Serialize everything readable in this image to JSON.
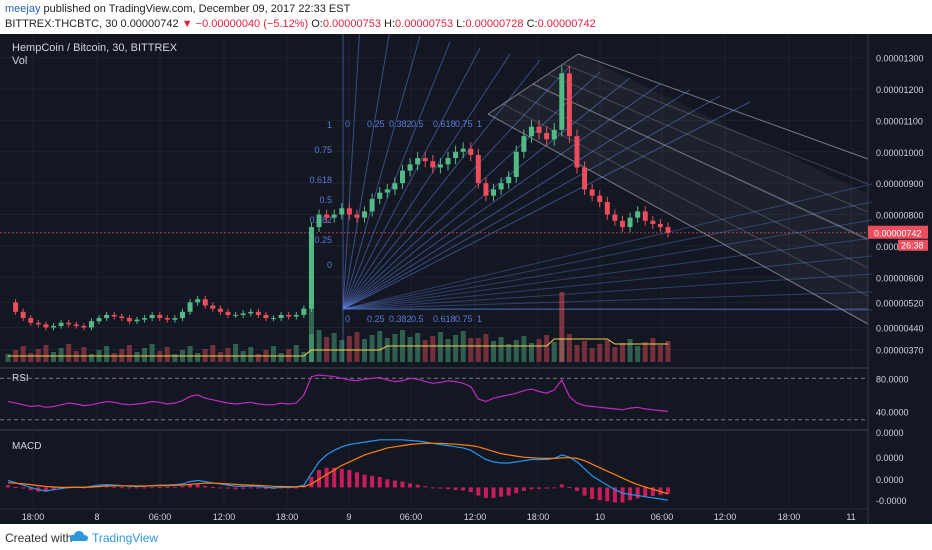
{
  "header": {
    "user": "meejay",
    "published": " published on TradingView.com, December 09, 2017 22:33 EST",
    "symbol_line": "BITTREX:THCBTC, 30  0.00000742",
    "change": " ▼ −0.00000040 (−5.12%)",
    "o_label": " O:",
    "o_value": "0.00000753",
    "h_label": " H:",
    "h_value": "0.00000753",
    "l_label": " L:",
    "l_value": "0.00000728",
    "c_label": " C:",
    "c_value": "0.00000742"
  },
  "pane": {
    "title": "HempCoin / Bitcoin, 30, BITTREX",
    "vol": "Vol",
    "rsi_label": "RSI",
    "macd_label": "MACD"
  },
  "footer": {
    "created_with": "Created with",
    "brand": "TradingView"
  },
  "colors": {
    "bg": "#131722",
    "up": "#53b987",
    "down": "#eb4d5c",
    "rsi": "#c228c2",
    "macd": "#2196f3",
    "signal": "#ff7f0e",
    "hist": "#e91e63",
    "vol_ma": "#f0d24a",
    "fib": "#5b7bd8",
    "pitch": "#a0a4b0"
  },
  "chart_data": [
    {
      "type": "candlestick",
      "title": "HempCoin / Bitcoin, 30, BITTREX",
      "price_axis_ticks": [
        "0.00001300",
        "0.00001200",
        "0.00001100",
        "0.00001000",
        "0.00000900",
        "0.00000800",
        "0.00000700",
        "0.00000600",
        "0.00000520",
        "0.00000440",
        "0.00000370"
      ],
      "last_price_label": "0.00000742",
      "countdown_label": "26:38",
      "time_axis_ticks": [
        "18:00",
        "8",
        "06:00",
        "12:00",
        "18:00",
        "9",
        "06:00",
        "12:00",
        "18:00",
        "10",
        "06:00",
        "12:00",
        "18:00",
        "11"
      ],
      "fib_levels": [
        "0",
        "0.25",
        "0.382",
        "0.5",
        "0.618",
        "0.75",
        "1"
      ],
      "close_series": [
        5.2e-06,
        4.9e-06,
        4.7e-06,
        4.55e-06,
        4.5e-06,
        4.4e-06,
        4.45e-06,
        4.55e-06,
        4.5e-06,
        4.45e-06,
        4.4e-06,
        4.6e-06,
        4.7e-06,
        4.8e-06,
        4.75e-06,
        4.7e-06,
        4.6e-06,
        4.65e-06,
        4.7e-06,
        4.8e-06,
        4.7e-06,
        4.65e-06,
        4.7e-06,
        4.9e-06,
        5.2e-06,
        5.3e-06,
        5.1e-06,
        5e-06,
        4.9e-06,
        4.8e-06,
        4.8e-06,
        4.85e-06,
        4.9e-06,
        4.8e-06,
        4.7e-06,
        4.7e-06,
        4.8e-06,
        4.75e-06,
        4.8e-06,
        5e-06,
        7.6e-06,
        8e-06,
        7.9e-06,
        8e-06,
        8.2e-06,
        8e-06,
        7.9e-06,
        8.1e-06,
        8.5e-06,
        8.7e-06,
        8.8e-06,
        9e-06,
        9.4e-06,
        9.6e-06,
        9.8e-06,
        9.7e-06,
        9.5e-06,
        9.6e-06,
        9.8e-06,
        1e-05,
        1.01e-05,
        9.9e-06,
        9e-06,
        8.6e-06,
        8.8e-06,
        9e-06,
        9.2e-06,
        1e-05,
        1.05e-05,
        1.08e-05,
        1.06e-05,
        1.04e-05,
        1.07e-05,
        1.25e-05,
        1.05e-05,
        9.5e-06,
        8.8e-06,
        8.6e-06,
        8.4e-06,
        8e-06,
        7.8e-06,
        7.6e-06,
        7.9e-06,
        8.1e-06,
        7.8e-06,
        7.7e-06,
        7.6e-06,
        7.42e-06
      ]
    },
    {
      "type": "line",
      "title": "RSI",
      "axis_ticks": [
        "80.0000",
        "40.0000"
      ],
      "values": [
        52,
        50,
        48,
        46,
        47,
        45,
        46,
        48,
        50,
        49,
        47,
        48,
        50,
        52,
        51,
        49,
        48,
        49,
        50,
        52,
        51,
        49,
        50,
        53,
        58,
        60,
        56,
        54,
        52,
        50,
        49,
        50,
        51,
        49,
        48,
        48,
        50,
        49,
        50,
        60,
        82,
        84,
        83,
        82,
        80,
        78,
        77,
        79,
        80,
        81,
        78,
        76,
        77,
        80,
        79,
        76,
        74,
        75,
        77,
        76,
        74,
        70,
        55,
        52,
        56,
        58,
        60,
        62,
        65,
        67,
        64,
        62,
        66,
        78,
        58,
        50,
        47,
        46,
        45,
        44,
        43,
        42,
        44,
        45,
        43,
        42,
        41,
        40
      ]
    },
    {
      "type": "line",
      "title": "MACD",
      "axis_ticks": [
        "0.0000",
        "0.0000",
        "0.0000",
        "-0.0000"
      ],
      "series": [
        {
          "name": "MACD",
          "values": [
            0.3,
            0.2,
            0.1,
            0,
            -0.1,
            -0.15,
            -0.1,
            -0.05,
            0,
            0.02,
            0,
            0.05,
            0.1,
            0.12,
            0.1,
            0.08,
            0.05,
            0.04,
            0.05,
            0.08,
            0.1,
            0.1,
            0.12,
            0.15,
            0.25,
            0.3,
            0.25,
            0.2,
            0.15,
            0.1,
            0.05,
            0.05,
            0.06,
            0.04,
            0,
            -0.02,
            0,
            0,
            0.02,
            0.1,
            0.6,
            1.1,
            1.4,
            1.6,
            1.75,
            1.85,
            1.9,
            1.95,
            2,
            2.05,
            2.05,
            2.05,
            2.05,
            2.02,
            2,
            1.95,
            1.9,
            1.85,
            1.8,
            1.75,
            1.7,
            1.6,
            1.4,
            1.2,
            1.1,
            1.05,
            1.05,
            1.1,
            1.15,
            1.2,
            1.2,
            1.2,
            1.25,
            1.4,
            1.3,
            1.1,
            0.8,
            0.5,
            0.3,
            0.1,
            -0.1,
            -0.25,
            -0.3,
            -0.35,
            -0.4,
            -0.45,
            -0.5,
            -0.55
          ]
        },
        {
          "name": "Signal",
          "values": [
            0.2,
            0.18,
            0.15,
            0.12,
            0.08,
            0.04,
            0.02,
            0,
            0,
            0,
            0,
            0.02,
            0.04,
            0.06,
            0.07,
            0.07,
            0.07,
            0.06,
            0.06,
            0.07,
            0.08,
            0.08,
            0.09,
            0.1,
            0.13,
            0.16,
            0.18,
            0.18,
            0.17,
            0.15,
            0.13,
            0.11,
            0.1,
            0.09,
            0.07,
            0.05,
            0.04,
            0.03,
            0.03,
            0.04,
            0.15,
            0.35,
            0.55,
            0.75,
            0.95,
            1.1,
            1.25,
            1.4,
            1.5,
            1.6,
            1.7,
            1.75,
            1.8,
            1.85,
            1.88,
            1.9,
            1.9,
            1.9,
            1.88,
            1.86,
            1.83,
            1.8,
            1.75,
            1.65,
            1.55,
            1.45,
            1.4,
            1.35,
            1.3,
            1.28,
            1.26,
            1.25,
            1.25,
            1.27,
            1.28,
            1.25,
            1.15,
            1.0,
            0.85,
            0.7,
            0.55,
            0.4,
            0.25,
            0.12,
            0.02,
            -0.08,
            -0.18,
            -0.28
          ]
        }
      ]
    }
  ]
}
